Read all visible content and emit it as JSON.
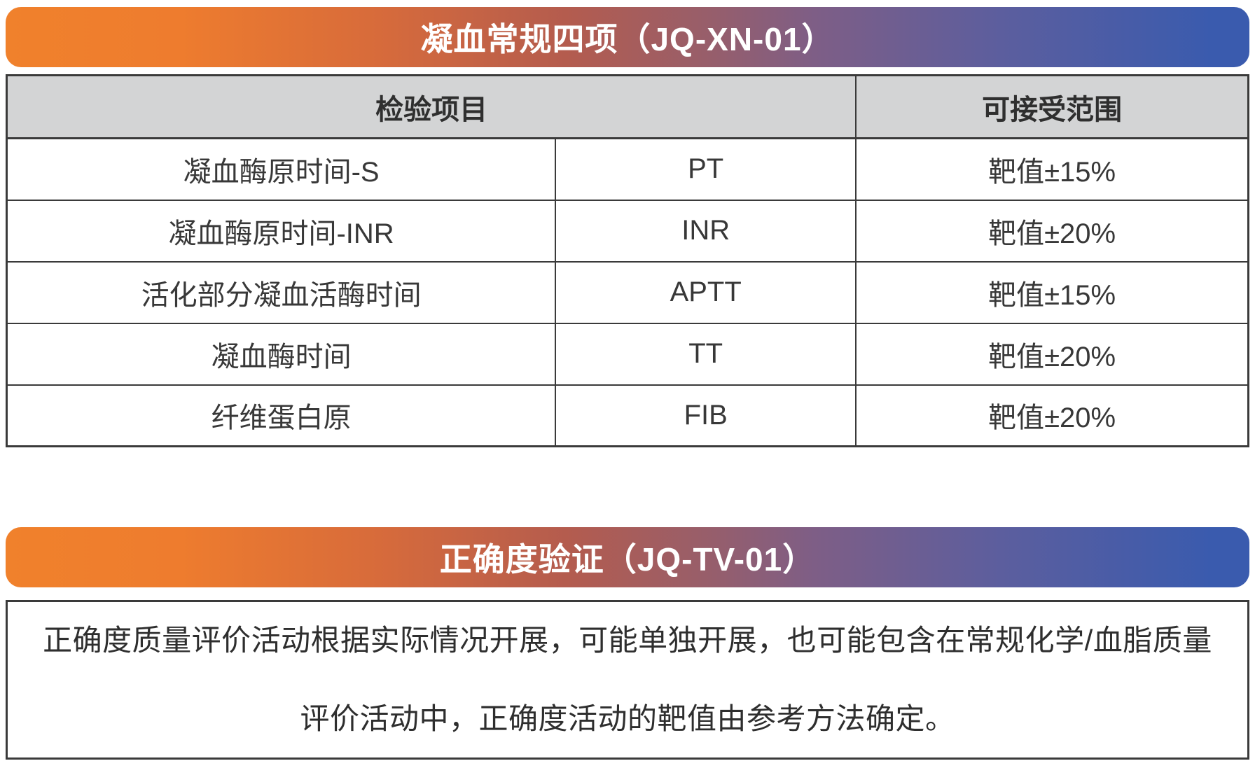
{
  "colors": {
    "gradient_start_orange": "#F0812C",
    "gradient_end_blue": "#3A5BAE",
    "table_header_bg": "#D3D4D5",
    "table_border": "#3A3A3A",
    "cell_text": "#383838",
    "banner_text": "#FFFFFF"
  },
  "section1": {
    "title": "凝血常规四项（JQ-XN-01）",
    "table": {
      "header": {
        "test_item": "检验项目",
        "acceptable_range": "可接受范围"
      },
      "rows": [
        {
          "name": "凝血酶原时间-S",
          "abbr": "PT",
          "range": "靶值±15%"
        },
        {
          "name": "凝血酶原时间-INR",
          "abbr": "INR",
          "range": "靶值±20%"
        },
        {
          "name": "活化部分凝血活酶时间",
          "abbr": "APTT",
          "range": "靶值±15%"
        },
        {
          "name": "凝血酶时间",
          "abbr": "TT",
          "range": "靶值±20%"
        },
        {
          "name": "纤维蛋白原",
          "abbr": "FIB",
          "range": "靶值±20%"
        }
      ]
    }
  },
  "section2": {
    "title": "正确度验证（JQ-TV-01）",
    "note_lines": [
      "正确度质量评价活动根据实际情况开展，可能单独开展，也可能包含在常规化学/血脂质量",
      "评价活动中，正确度活动的靶值由参考方法确定。"
    ]
  }
}
